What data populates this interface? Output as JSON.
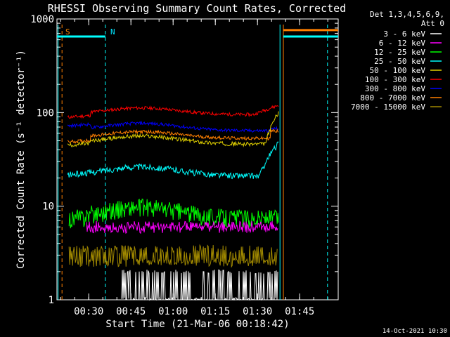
{
  "chart_data": {
    "type": "line",
    "title": "RHESSI Observing Summary Count Rates, Corrected",
    "xlabel": "Start Time (21-Mar-06 00:18:42)",
    "ylabel": "Corrected Count Rate (s⁻¹ detector⁻¹)",
    "yscale": "log",
    "ylim": [
      1,
      1000
    ],
    "xlim_minutes": [
      0,
      100
    ],
    "x_tick_labels": [
      "00:30",
      "00:45",
      "01:00",
      "01:15",
      "01:30",
      "01:45"
    ],
    "x_tick_minutes": [
      11.3,
      26.3,
      41.3,
      56.3,
      71.3,
      86.3
    ],
    "y_tick_labels": [
      "1",
      "10",
      "100",
      "1000"
    ],
    "y_tick_values": [
      1,
      10,
      100,
      1000
    ],
    "legend_header": [
      "Det 1,3,4,5,6,9,",
      "Att 0"
    ],
    "legend_position": "right",
    "annotations": [
      {
        "text": "S",
        "x_minutes": 2.5,
        "color": "#ff8c00"
      },
      {
        "text": "N",
        "x_minutes": 18.5,
        "color": "#00e5ff"
      }
    ],
    "timestamp": "14-Oct-2021 10:30",
    "series": [
      {
        "name": "3 - 6 keV",
        "color": "#ffffff"
      },
      {
        "name": "6 - 12 keV",
        "color": "#ff00ff"
      },
      {
        "name": "12 - 25 keV",
        "color": "#00ff00"
      },
      {
        "name": "25 - 50 keV",
        "color": "#00ffff"
      },
      {
        "name": "50 - 100 keV",
        "color": "#e0d000"
      },
      {
        "name": "100 - 300 keV",
        "color": "#ff0000"
      },
      {
        "name": "300 - 800 keV",
        "color": "#0000ff"
      },
      {
        "name": "800 - 7000 keV",
        "color": "#ff7f00"
      },
      {
        "name": "7000 - 15000 keV",
        "color": "#a08800"
      }
    ]
  }
}
